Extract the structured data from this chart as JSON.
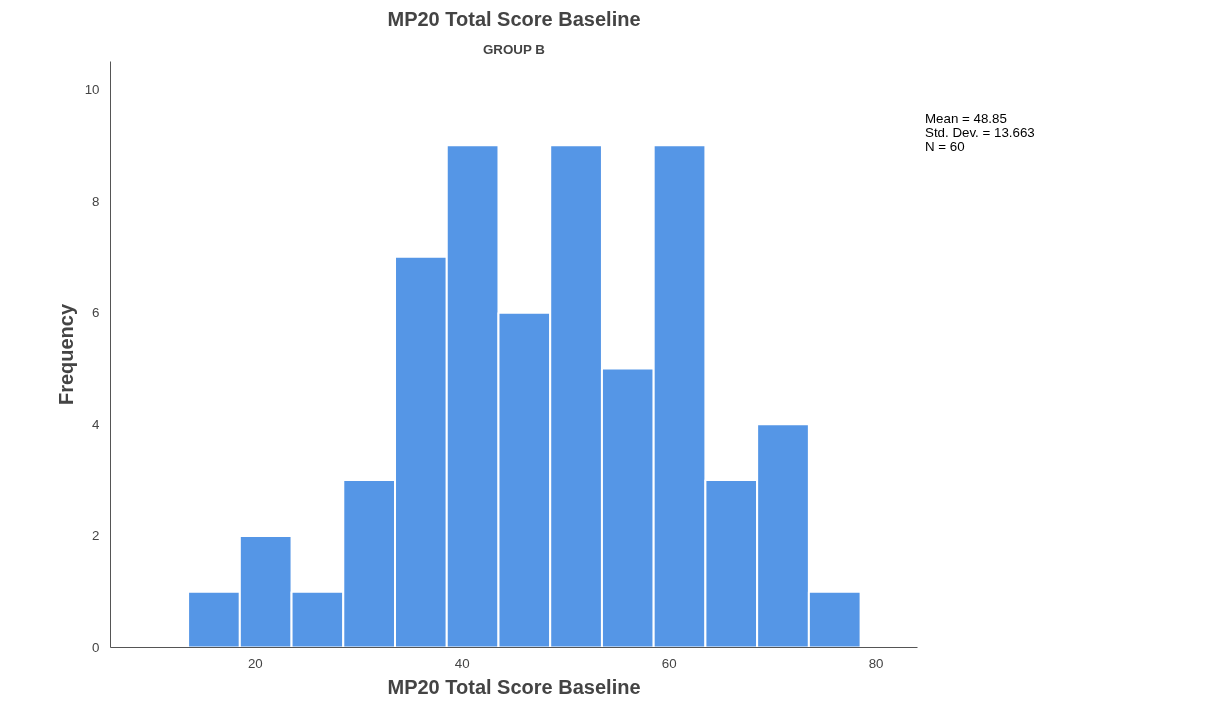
{
  "chart_data": {
    "type": "histogram",
    "title": "MP20 Total Score Baseline",
    "subtitle": "GROUP B",
    "xlabel": "MP20 Total Score Baseline",
    "ylabel": "Frequency",
    "bins": [
      13.5,
      18.5,
      23.5,
      28.5,
      33.5,
      38.5,
      43.5,
      48.5,
      53.5,
      58.5,
      63.5,
      68.5,
      73.5,
      78.5
    ],
    "values": [
      1,
      2,
      1,
      3,
      7,
      9,
      6,
      9,
      5,
      9,
      3,
      4,
      1
    ],
    "color": "#5596e6",
    "xlim": [
      6,
      84
    ],
    "ylim": [
      0,
      10.5
    ],
    "xticks": [
      20,
      40,
      60,
      80
    ],
    "yticks": [
      0,
      2,
      4,
      6,
      8,
      10
    ],
    "grid": false,
    "annotations": [
      "Mean = 48.85",
      "Std. Dev. = 13.663",
      "N = 60"
    ]
  }
}
